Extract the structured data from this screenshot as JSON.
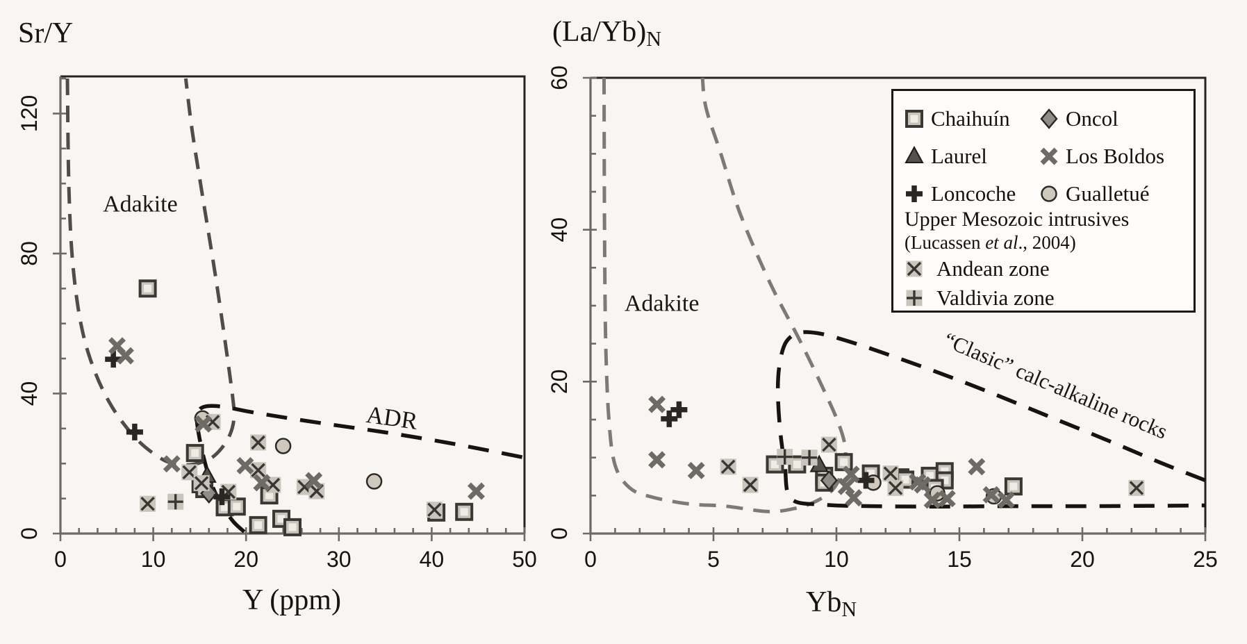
{
  "figure": {
    "background": "#f8f6f2"
  },
  "legend": {
    "items": [
      {
        "label": "Chaihuín",
        "symbol": "square"
      },
      {
        "label": "Oncol",
        "symbol": "diamond"
      },
      {
        "label": "Laurel",
        "symbol": "triangle"
      },
      {
        "label": "Los Boldos",
        "symbol": "boldx"
      },
      {
        "label": "Loncoche",
        "symbol": "plus"
      },
      {
        "label": "Gualletué",
        "symbol": "circle"
      }
    ],
    "group_title": "Upper Mesozoic intrusives",
    "group_subtitle_pre": "(Lucassen ",
    "group_subtitle_italic": "et al",
    "group_subtitle_post": "., 2004)",
    "group_items": [
      {
        "label": "Andean zone",
        "symbol": "bgx"
      },
      {
        "label": "Valdivia zone",
        "symbol": "bgplus"
      }
    ]
  },
  "symbols": {
    "square": {
      "fill": "#c9c4bb",
      "inner": "#efece5",
      "stroke": "#3b3733"
    },
    "triangle": {
      "fill": "#54504c",
      "stroke": "#1f1d1a"
    },
    "plus": {
      "stroke": "#292724"
    },
    "diamond": {
      "fill": "#8f8b86",
      "stroke": "#2b2926"
    },
    "boldx": {
      "stroke": "#6e6a66"
    },
    "circle": {
      "fill": "#cfc8bc",
      "stroke": "#2d2a27"
    },
    "bgx": {
      "bg": "#c9c4bc",
      "stroke": "#393632"
    },
    "bgplus": {
      "bg": "#c9c4bc",
      "stroke": "#393632"
    }
  },
  "chart_data": [
    {
      "type": "scatter",
      "ylabel_main": "Sr/Y",
      "ylabel_sub": "",
      "xlabel_main": "Y (ppm)",
      "xlabel_sub": "",
      "xlim": [
        0,
        50
      ],
      "ylim": [
        0,
        130.6
      ],
      "x_ticks": [
        0,
        10,
        20,
        30,
        40,
        50
      ],
      "x_minor_step": 2,
      "y_ticks": [
        0,
        40,
        80,
        120
      ],
      "y_minor_step": 10,
      "grid": false,
      "annotations": [
        {
          "text": "Adakite",
          "x": 8.6,
          "y": 92.0,
          "rot": 0,
          "size": 34
        },
        {
          "text": "ADR",
          "x": 35.6,
          "y": 30.8,
          "rot": 8,
          "size": 35
        }
      ],
      "regions": [
        {
          "name": "adakite-field-boundary",
          "color": "#4f4c49",
          "width": 5,
          "dash": "24 15",
          "points": [
            [
              0.75,
              130
            ],
            [
              0.9,
              100
            ],
            [
              1.3,
              78
            ],
            [
              2.2,
              60
            ],
            [
              3.6,
              47
            ],
            [
              5.6,
              36
            ],
            [
              8.2,
              27
            ],
            [
              10.8,
              21.5
            ],
            [
              12.6,
              19.8
            ],
            [
              14.4,
              19.8
            ],
            [
              16.2,
              21.5
            ],
            [
              17.4,
              24.5
            ],
            [
              18.3,
              28.5
            ],
            [
              18.7,
              33
            ],
            [
              18.6,
              38
            ],
            [
              18.0,
              50
            ],
            [
              16.8,
              72
            ],
            [
              15.4,
              95
            ],
            [
              14.2,
              115
            ],
            [
              13.5,
              130
            ]
          ]
        },
        {
          "name": "adr-field-boundary",
          "color": "#161311",
          "width": 5.5,
          "dash": "30 19",
          "points": [
            [
              19.8,
              0.5
            ],
            [
              18.6,
              3.5
            ],
            [
              17.3,
              8.5
            ],
            [
              16.3,
              14
            ],
            [
              15.6,
              20
            ],
            [
              15.0,
              27
            ],
            [
              14.7,
              32.5
            ],
            [
              14.9,
              35.2
            ],
            [
              15.8,
              36.4
            ],
            [
              17.6,
              36.2
            ],
            [
              20.4,
              34.8
            ],
            [
              24,
              33.2
            ],
            [
              29,
              31.2
            ],
            [
              35,
              28.9
            ],
            [
              42,
              25.8
            ],
            [
              50,
              21.7
            ]
          ]
        }
      ],
      "series": [
        {
          "name": "Chaihuín",
          "symbol": "square",
          "points": [
            [
              9.4,
              70
            ],
            [
              14.5,
              23
            ],
            [
              15.1,
              14.1
            ],
            [
              15.5,
              12.7
            ],
            [
              17.7,
              7.5
            ],
            [
              19.0,
              7.7
            ],
            [
              21.3,
              2.4
            ],
            [
              22.5,
              10.9
            ],
            [
              23.8,
              4.2
            ],
            [
              25.0,
              1.8
            ],
            [
              40.5,
              6.0
            ],
            [
              43.5,
              6.2
            ]
          ]
        },
        {
          "name": "Gualletué",
          "symbol": "circle",
          "points": [
            [
              15.3,
              32.9
            ],
            [
              24.0,
              25.0
            ],
            [
              33.8,
              14.9
            ]
          ]
        },
        {
          "name": "Oncol",
          "symbol": "diamond",
          "points": [
            [
              16.0,
              11.5
            ]
          ]
        },
        {
          "name": "Laurel",
          "symbol": "triangle",
          "points": [
            [
              15.8,
              16.5
            ]
          ]
        },
        {
          "name": "Andean zone",
          "symbol": "bgx",
          "points": [
            [
              9.4,
              8.5
            ],
            [
              13.9,
              17.5
            ],
            [
              15.2,
              14.4
            ],
            [
              16.4,
              31.9
            ],
            [
              18.1,
              11.9
            ],
            [
              21.3,
              26.0
            ],
            [
              21.3,
              18.1
            ],
            [
              22.9,
              13.9
            ],
            [
              26.3,
              13.3
            ],
            [
              27.6,
              12.1
            ],
            [
              40.3,
              6.8
            ]
          ]
        },
        {
          "name": "Valdivia zone",
          "symbol": "bgplus",
          "points": [
            [
              12.4,
              9.1
            ]
          ]
        },
        {
          "name": "Loncoche",
          "symbol": "plus",
          "points": [
            [
              5.7,
              49.8
            ],
            [
              8.0,
              29.0
            ],
            [
              17.4,
              10.5
            ]
          ]
        },
        {
          "name": "Los Boldos",
          "symbol": "boldx",
          "points": [
            [
              6.1,
              53.6
            ],
            [
              7.0,
              50.8
            ],
            [
              12.0,
              19.9
            ],
            [
              15.4,
              31.3
            ],
            [
              19.9,
              19.4
            ],
            [
              21.7,
              14.5
            ],
            [
              27.3,
              15.1
            ],
            [
              44.8,
              12.1
            ]
          ]
        }
      ]
    },
    {
      "type": "scatter",
      "ylabel_main": "(La/Yb)",
      "ylabel_sub": "N",
      "xlabel_main": "Yb",
      "xlabel_sub": "N",
      "xlim": [
        0,
        25
      ],
      "ylim": [
        0,
        60
      ],
      "x_ticks": [
        0,
        5,
        10,
        15,
        20,
        25
      ],
      "x_minor_step": 1,
      "y_ticks": [
        0,
        20,
        40,
        60
      ],
      "y_minor_step": 5,
      "grid": false,
      "annotations": [
        {
          "text": "Adakite",
          "x": 2.9,
          "y": 29.3,
          "rot": 0,
          "size": 34
        },
        {
          "text": "“Clasic” calc-alkaline rocks",
          "x": 18.8,
          "y": 18.6,
          "rot": 23,
          "size": 31
        }
      ],
      "regions": [
        {
          "name": "adakite-field-boundary",
          "color": "#7d7a76",
          "width": 5,
          "dash": "24 15",
          "points": [
            [
              0.55,
              60
            ],
            [
              0.57,
              40
            ],
            [
              0.62,
              25
            ],
            [
              0.75,
              15
            ],
            [
              1.0,
              9
            ],
            [
              1.6,
              6
            ],
            [
              2.5,
              4.8
            ],
            [
              4.0,
              3.9
            ],
            [
              5.5,
              3.6
            ],
            [
              7.2,
              2.9
            ],
            [
              8.3,
              3.3
            ],
            [
              9.2,
              4.3
            ],
            [
              9.9,
              6.0
            ],
            [
              10.3,
              8.8
            ],
            [
              10.35,
              11.5
            ],
            [
              10.05,
              14.8
            ],
            [
              9.4,
              19.5
            ],
            [
              8.5,
              25.5
            ],
            [
              7.3,
              33
            ],
            [
              6.1,
              42
            ],
            [
              5.3,
              50
            ],
            [
              4.7,
              56
            ],
            [
              4.55,
              60
            ]
          ]
        },
        {
          "name": "calc-alkaline-field-boundary",
          "color": "#161311",
          "width": 5.5,
          "dash": "30 19",
          "points": [
            [
              25,
              7.0
            ],
            [
              23.2,
              9.3
            ],
            [
              21,
              12.3
            ],
            [
              18.5,
              15.6
            ],
            [
              16,
              18.9
            ],
            [
              13.8,
              21.6
            ],
            [
              11.8,
              23.9
            ],
            [
              10.3,
              25.5
            ],
            [
              9.2,
              26.4
            ],
            [
              8.45,
              26.4
            ],
            [
              7.95,
              25.2
            ],
            [
              7.7,
              22.5
            ],
            [
              7.62,
              19
            ],
            [
              7.7,
              14
            ],
            [
              7.9,
              9
            ],
            [
              8.15,
              4.6
            ],
            [
              9.5,
              3.8
            ],
            [
              11.5,
              3.6
            ],
            [
              14,
              3.55
            ],
            [
              17,
              3.6
            ],
            [
              20,
              3.6
            ],
            [
              23,
              3.65
            ],
            [
              25,
              3.7
            ]
          ]
        }
      ],
      "series": [
        {
          "name": "Chaihuín",
          "symbol": "square",
          "points": [
            [
              7.5,
              9.1
            ],
            [
              8.4,
              9.1
            ],
            [
              9.5,
              7.6
            ],
            [
              9.5,
              6.7
            ],
            [
              10.3,
              9.4
            ],
            [
              11.4,
              7.9
            ],
            [
              12.6,
              7.4
            ],
            [
              12.8,
              7.1
            ],
            [
              13.8,
              7.6
            ],
            [
              14.4,
              8.2
            ],
            [
              14.4,
              7.0
            ],
            [
              14.0,
              6.0
            ],
            [
              17.2,
              6.2
            ]
          ]
        },
        {
          "name": "Gualletué",
          "symbol": "circle",
          "points": [
            [
              11.5,
              6.7
            ],
            [
              14.1,
              5.3
            ],
            [
              16.4,
              4.9
            ]
          ]
        },
        {
          "name": "Oncol",
          "symbol": "diamond",
          "points": [
            [
              9.7,
              7.0
            ]
          ]
        },
        {
          "name": "Laurel",
          "symbol": "triangle",
          "points": [
            [
              9.3,
              9.0
            ]
          ]
        },
        {
          "name": "Andean zone",
          "symbol": "bgx",
          "points": [
            [
              5.6,
              8.8
            ],
            [
              6.5,
              6.4
            ],
            [
              9.7,
              11.7
            ],
            [
              12.2,
              7.9
            ],
            [
              12.4,
              6.0
            ],
            [
              22.2,
              6.0
            ]
          ]
        },
        {
          "name": "Valdivia zone",
          "symbol": "bgplus",
          "points": [
            [
              7.9,
              10.1
            ],
            [
              8.9,
              10.0
            ]
          ]
        },
        {
          "name": "Loncoche",
          "symbol": "plus",
          "points": [
            [
              3.2,
              15.1
            ],
            [
              3.6,
              16.3
            ],
            [
              11.2,
              7.0
            ]
          ]
        },
        {
          "name": "Los Boldos",
          "symbol": "boldx",
          "points": [
            [
              2.7,
              17.0
            ],
            [
              2.7,
              9.7
            ],
            [
              4.3,
              8.3
            ],
            [
              10.6,
              7.8
            ],
            [
              10.4,
              6.2
            ],
            [
              10.7,
              4.7
            ],
            [
              13.3,
              6.8
            ],
            [
              13.5,
              6.4
            ],
            [
              13.9,
              4.4
            ],
            [
              14.5,
              4.6
            ],
            [
              15.7,
              8.8
            ],
            [
              16.3,
              5.1
            ],
            [
              16.9,
              4.4
            ]
          ]
        }
      ]
    }
  ]
}
